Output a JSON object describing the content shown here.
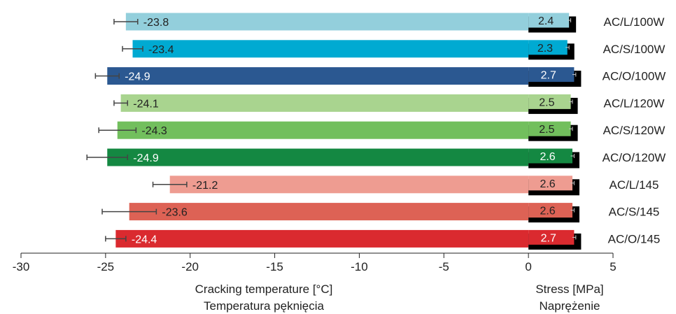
{
  "chart_data": {
    "type": "bar",
    "orientation": "horizontal",
    "categories": [
      "AC/L/100W",
      "AC/S/100W",
      "AC/O/100W",
      "AC/L/120W",
      "AC/S/120W",
      "AC/O/120W",
      "AC/L/145",
      "AC/S/145",
      "AC/O/145"
    ],
    "series": [
      {
        "values": [
          -23.8,
          -23.4,
          -24.9,
          -24.1,
          -24.3,
          -24.9,
          -21.2,
          -23.6,
          -24.4
        ],
        "errors": [
          0.7,
          0.6,
          0.7,
          0.4,
          1.1,
          1.2,
          1.0,
          1.6,
          0.6
        ],
        "labels": [
          "-23.8",
          "-23.4",
          "-24.9",
          "-24.1",
          "-24.3",
          "-24.9",
          "-21.2",
          "-23.6",
          "-24.4"
        ]
      },
      {
        "values": [
          2.4,
          2.3,
          2.7,
          2.5,
          2.5,
          2.6,
          2.6,
          2.6,
          2.7
        ],
        "errors": [
          0.1,
          0.1,
          0.1,
          0.1,
          0.1,
          0.1,
          0.1,
          0.1,
          0.1
        ],
        "labels": [
          "2.4",
          "2.3",
          "2.7",
          "2.5",
          "2.5",
          "2.6",
          "2.6",
          "2.6",
          "2.7"
        ]
      }
    ],
    "colors": [
      "#93cfdc",
      "#00aad2",
      "#2b5891",
      "#a9d48f",
      "#72bf5d",
      "#148842",
      "#ee9c91",
      "#dd6255",
      "#da2a2f"
    ],
    "shadow_color": "#000000",
    "label_colors_left": [
      "#222222",
      "#222222",
      "#ffffff",
      "#222222",
      "#222222",
      "#ffffff",
      "#222222",
      "#222222",
      "#ffffff"
    ],
    "label_colors_right": [
      "#222222",
      "#222222",
      "#ffffff",
      "#222222",
      "#222222",
      "#ffffff",
      "#222222",
      "#222222",
      "#ffffff"
    ],
    "xlim": [
      -30,
      5
    ],
    "ticks": [
      -30,
      -25,
      -20,
      -15,
      -10,
      -5,
      0,
      5
    ],
    "tick_labels": [
      "-30",
      "-25",
      "-20",
      "-15",
      "-10",
      "-5",
      "0",
      "5"
    ],
    "xlabel_left": [
      "Cracking temperature [°C]",
      "Temperatura pęknięcia"
    ],
    "xlabel_right": [
      "Stress [MPa]",
      "Naprężenie"
    ]
  }
}
